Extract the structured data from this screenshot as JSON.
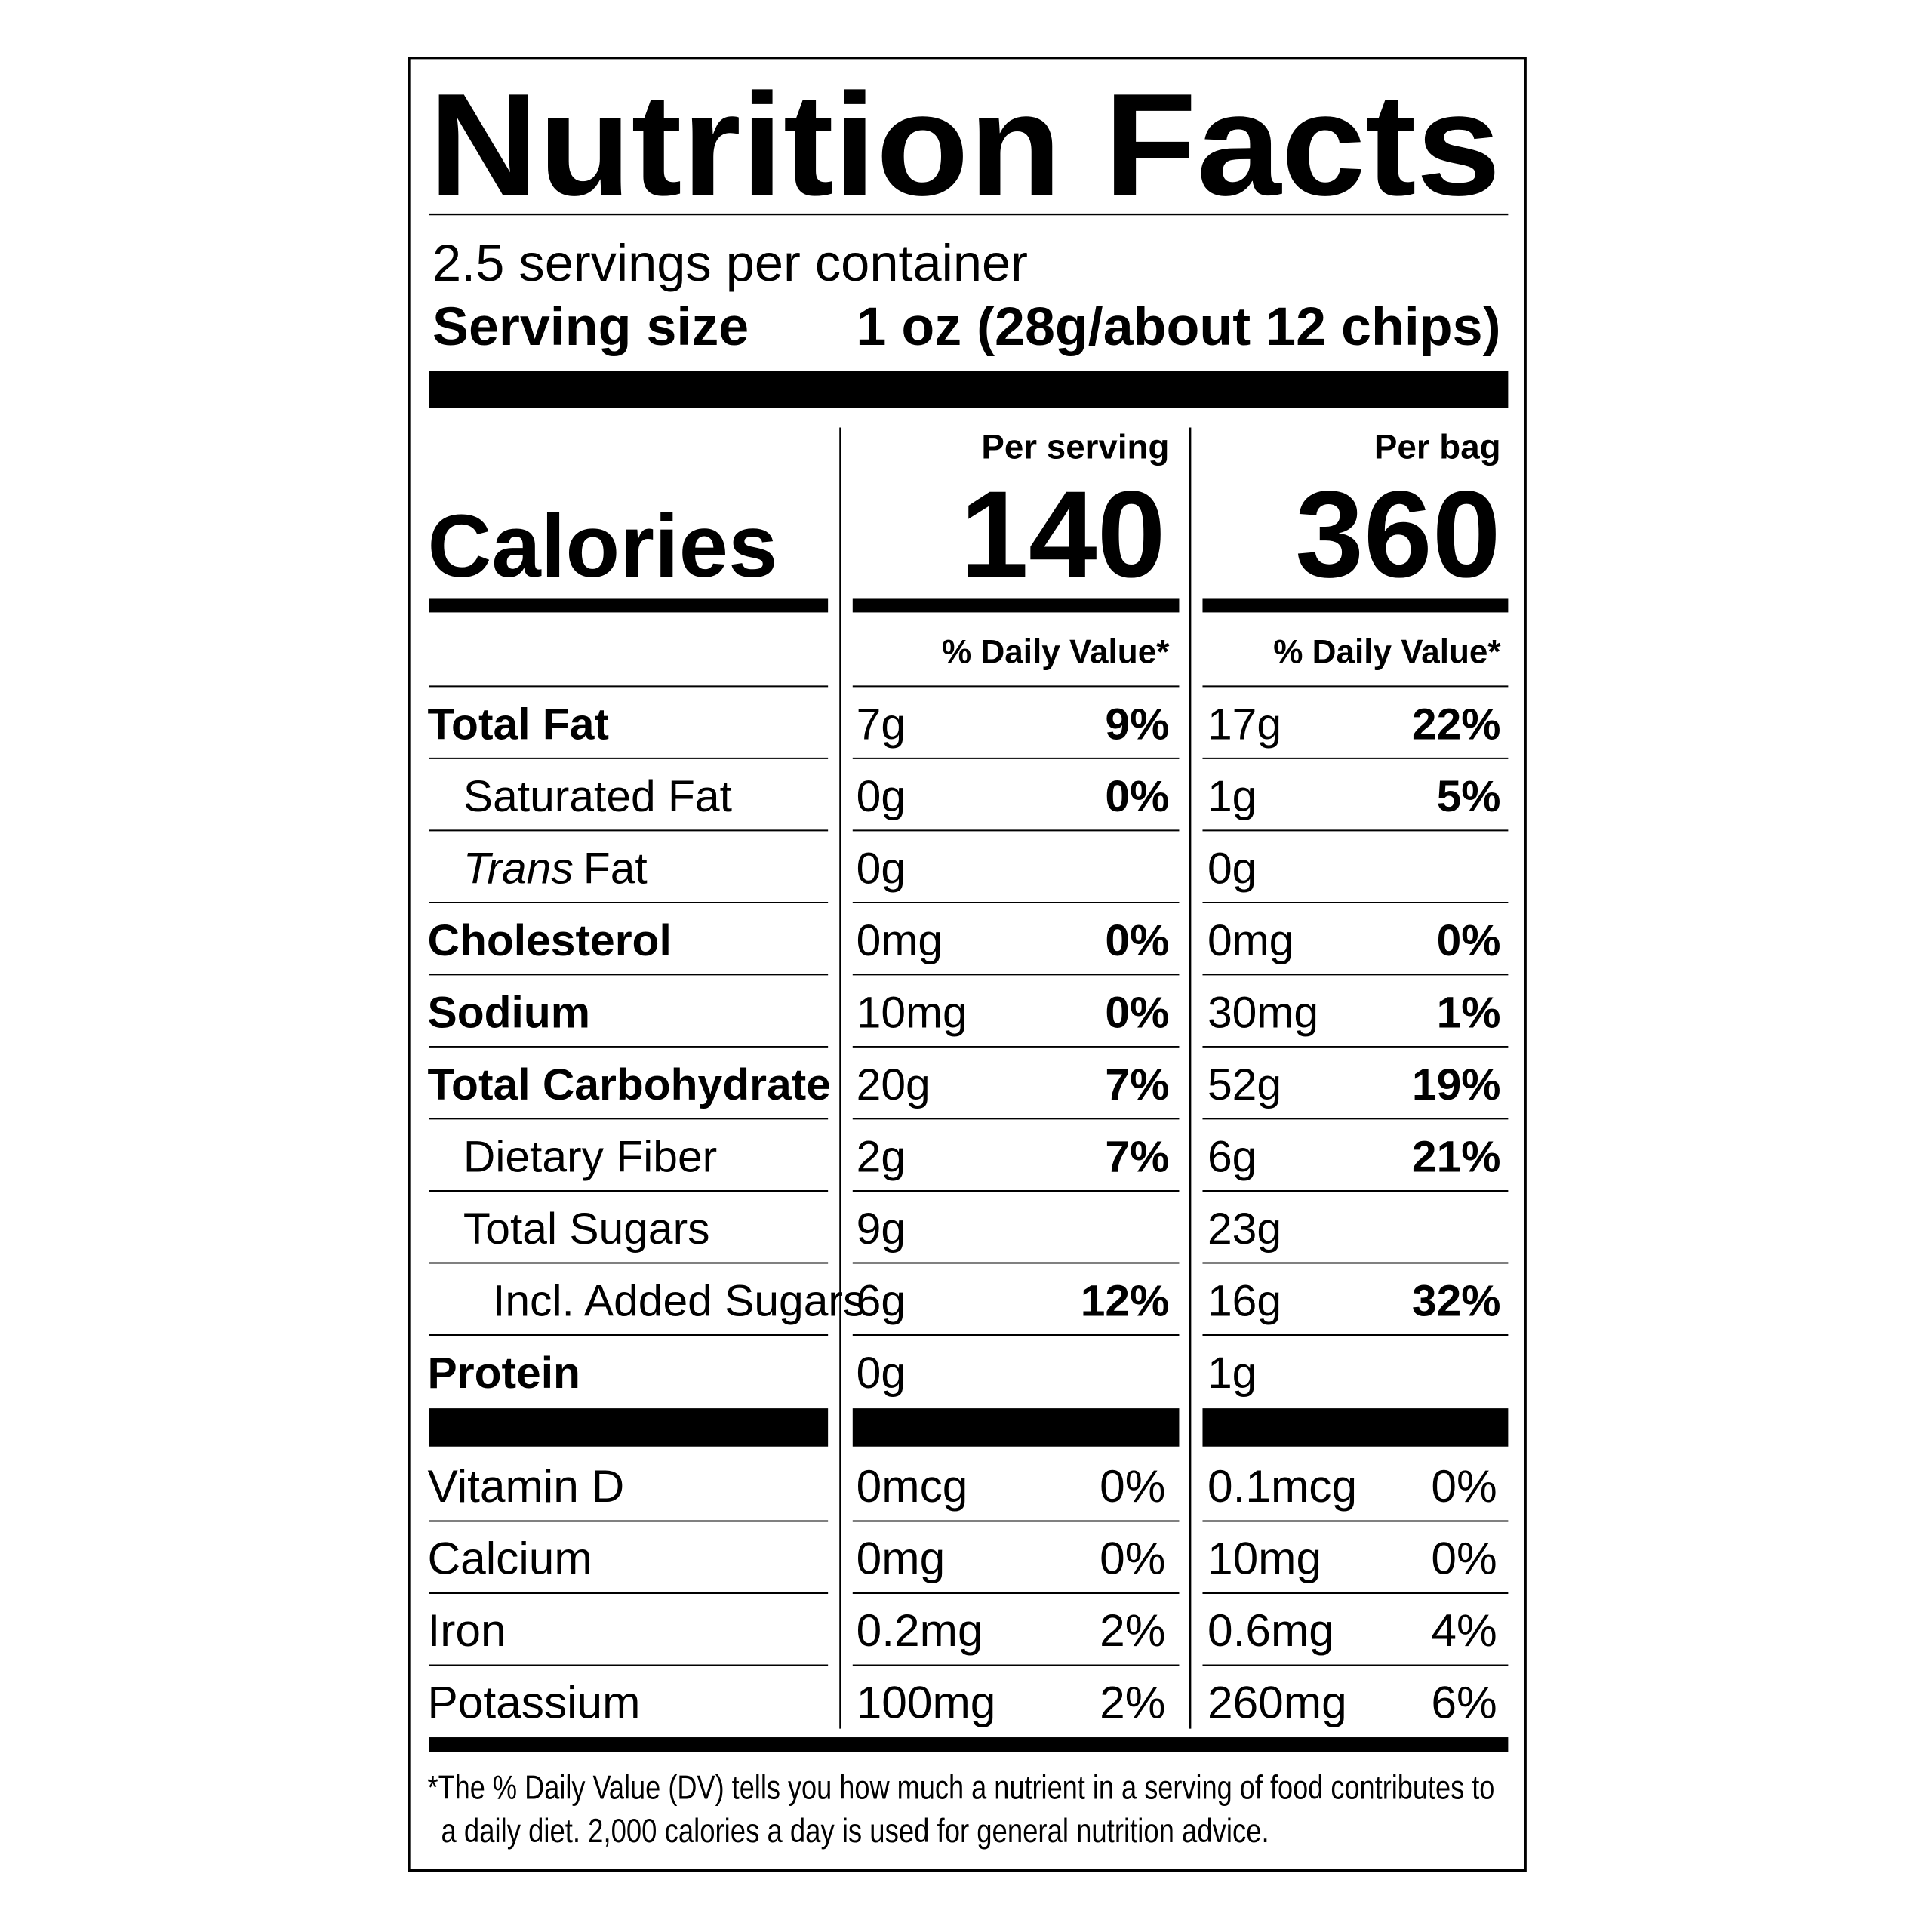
{
  "title": "Nutrition Facts",
  "servings": "2.5 servings per container",
  "serving_size": {
    "label": "Serving size",
    "value": "1 oz (28g/about 12 chips)"
  },
  "calories": {
    "label": "Calories",
    "columns": [
      {
        "header": "Per serving",
        "value": "140",
        "dv_header": "% Daily Value*"
      },
      {
        "header": "Per bag",
        "value": "360",
        "dv_header": "% Daily Value*"
      }
    ]
  },
  "nutrients": [
    {
      "name": "Total Fat",
      "level": 0,
      "serving": [
        "7g",
        "9%"
      ],
      "bag": [
        "17g",
        "22%"
      ]
    },
    {
      "name": "Saturated Fat",
      "level": 1,
      "serving": [
        "0g",
        "0%"
      ],
      "bag": [
        "1g",
        "5%"
      ]
    },
    {
      "name_italic": "Trans",
      "name": "Fat",
      "level": 1,
      "serving": [
        "0g"
      ],
      "bag": [
        "0g"
      ]
    },
    {
      "name": "Cholesterol",
      "level": 0,
      "serving": [
        "0mg",
        "0%"
      ],
      "bag": [
        "0mg",
        "0%"
      ]
    },
    {
      "name": "Sodium",
      "level": 0,
      "serving": [
        "10mg",
        "0%"
      ],
      "bag": [
        "30mg",
        "1%"
      ]
    },
    {
      "name": "Total Carbohydrate",
      "level": 0,
      "serving": [
        "20g",
        "7%"
      ],
      "bag": [
        "52g",
        "19%"
      ]
    },
    {
      "name": "Dietary Fiber",
      "level": 1,
      "serving": [
        "2g",
        "7%"
      ],
      "bag": [
        "6g",
        "21%"
      ]
    },
    {
      "name": "Total Sugars",
      "level": 1,
      "serving": [
        "9g"
      ],
      "bag": [
        "23g"
      ]
    },
    {
      "name": "Incl. Added Sugars",
      "level": 2,
      "serving": [
        "6g",
        "12%"
      ],
      "bag": [
        "16g",
        "32%"
      ]
    },
    {
      "name": "Protein",
      "level": 0,
      "serving": [
        "0g"
      ],
      "bag": [
        "1g"
      ]
    }
  ],
  "vitamins": [
    {
      "name": "Vitamin D",
      "serving": [
        "0mcg",
        "0%"
      ],
      "bag": [
        "0.1mcg",
        "0%"
      ]
    },
    {
      "name": "Calcium",
      "serving": [
        "0mg",
        "0%"
      ],
      "bag": [
        "10mg",
        "0%"
      ]
    },
    {
      "name": "Iron",
      "serving": [
        "0.2mg",
        "2%"
      ],
      "bag": [
        "0.6mg",
        "4%"
      ]
    },
    {
      "name": "Potassium",
      "serving": [
        "100mg",
        "2%"
      ],
      "bag": [
        "260mg",
        "6%"
      ]
    }
  ],
  "footnote": [
    "*The % Daily Value (DV) tells you how much a nutrient in a serving of food contributes to",
    "a daily diet. 2,000 calories a day is used for general nutrition advice."
  ]
}
